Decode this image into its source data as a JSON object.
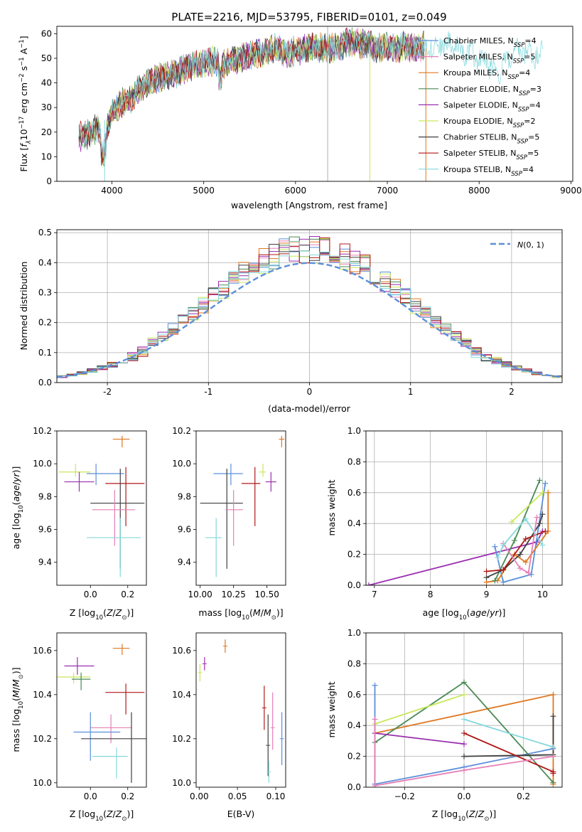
{
  "figure": {
    "title": "PLATE=2216, MJD=53795, FIBERID=0101, z=0.049"
  },
  "chart_data": [
    {
      "id": "spectrum",
      "type": "line",
      "title": "PLATE=2216, MJD=53795, FIBERID=0101, z=0.049",
      "xlabel": "wavelength [Angstrom, rest frame]",
      "ylabel": "Flux [f_λ10^-17 erg cm^-2 s^-1 A^-1]",
      "xlim": [
        3400,
        9020
      ],
      "ylim": [
        0,
        63
      ],
      "xticks": [
        4000,
        5000,
        6000,
        7000,
        8000,
        9000
      ],
      "yticks": [
        0,
        10,
        20,
        30,
        40,
        50,
        60
      ],
      "grid": false,
      "legend_position": "top-right",
      "continuum": {
        "x": [
          3640,
          3750,
          3850,
          3900,
          3950,
          4000,
          4100,
          4200,
          4300,
          4400,
          4500,
          4600,
          4700,
          4800,
          4900,
          5000,
          5100,
          5200,
          5300,
          5400,
          5500,
          5600,
          5700,
          5800,
          5900,
          6000,
          6100,
          6200,
          6300,
          6400,
          6500,
          6600,
          6700,
          6800,
          6900,
          7000,
          7100,
          7200,
          7300,
          7400
        ],
        "y": [
          18,
          19,
          22,
          16,
          22,
          28,
          32,
          33,
          38,
          40,
          42,
          43,
          44,
          46,
          47,
          48,
          49,
          47,
          49,
          50,
          51,
          52,
          53,
          54,
          52,
          53,
          54,
          55,
          54,
          54,
          55,
          57,
          56,
          55,
          54,
          55,
          54,
          55,
          54,
          55
        ]
      },
      "kroupa_stelib_extension": {
        "x": [
          7400,
          7600,
          7800,
          8000,
          8200,
          8400,
          8500,
          8600,
          8700
        ],
        "y": [
          55,
          56,
          54,
          50,
          45,
          52,
          53,
          51,
          52
        ]
      },
      "series": [
        {
          "name": "Chabrier MILES, N_SSP=4",
          "color": "#5b8fd9"
        },
        {
          "name": "Salpeter MILES, N_SSP=5",
          "color": "#e57fb5"
        },
        {
          "name": "Kroupa MILES, N_SSP=4",
          "color": "#e07820"
        },
        {
          "name": "Chabrier ELODIE, N_SSP=3",
          "color": "#4a8a54"
        },
        {
          "name": "Salpeter ELODIE, N_SSP=4",
          "color": "#9a2fb0"
        },
        {
          "name": "Kroupa ELODIE, N_SSP=2",
          "color": "#c8e85a"
        },
        {
          "name": "Chabrier STELIB, N_SSP=5",
          "color": "#404040"
        },
        {
          "name": "Salpeter STELIB, N_SSP=5",
          "color": "#b01818"
        },
        {
          "name": "Kroupa STELIB, N_SSP=4",
          "color": "#84d8dc"
        }
      ]
    },
    {
      "id": "residuals",
      "type": "histogram",
      "xlabel": "(data-model)/error",
      "ylabel": "Normed distribution",
      "xlim": [
        -2.5,
        2.5
      ],
      "ylim": [
        0,
        0.51
      ],
      "xticks": [
        -2,
        -1,
        0,
        1,
        2
      ],
      "yticks": [
        0.0,
        0.1,
        0.2,
        0.3,
        0.4,
        0.5
      ],
      "grid": true,
      "legend_position": "top-right",
      "bin_width": 0.1,
      "reference_curve": {
        "label": "N(0,1)",
        "color": "#5b8fd9"
      }
    },
    {
      "id": "age-vs-Z",
      "type": "scatter",
      "xlabel": "Z [log10(Z/Z⊙)]",
      "ylabel": "age [log10(age/yr)]",
      "xlim": [
        -0.18,
        0.3
      ],
      "ylim": [
        9.26,
        10.2
      ],
      "xticks": [
        0.0,
        0.2
      ],
      "yticks": [
        9.4,
        9.6,
        9.8,
        10.0,
        10.2
      ],
      "grid": false,
      "points": [
        {
          "x": 0.17,
          "y": 10.15,
          "ex": [
            0.05,
            0.04
          ],
          "ey": [
            0.05,
            0.02
          ],
          "color": "#e07820"
        },
        {
          "x": -0.08,
          "y": 9.95,
          "ex": [
            0.09,
            0.08
          ],
          "ey": [
            0.03,
            0.05
          ],
          "color": "#c8e85a"
        },
        {
          "x": 0.03,
          "y": 9.94,
          "ex": [
            0.05,
            0.15
          ],
          "ey": [
            0.07,
            0.06
          ],
          "color": "#5b8fd9"
        },
        {
          "x": -0.06,
          "y": 9.89,
          "ex": [
            0.08,
            0.08
          ],
          "ey": [
            0.06,
            0.06
          ],
          "color": "#9a2fb0"
        },
        {
          "x": 0.19,
          "y": 9.88,
          "ex": [
            0.11,
            0.1
          ],
          "ey": [
            0.26,
            0.1
          ],
          "color": "#b01818"
        },
        {
          "x": 0.16,
          "y": 9.76,
          "ex": [
            0.16,
            0.13
          ],
          "ey": [
            0.4,
            0.21
          ],
          "color": "#404040"
        },
        {
          "x": 0.13,
          "y": 9.72,
          "ex": [
            0.12,
            0.11
          ],
          "ey": [
            0.22,
            0.12
          ],
          "color": "#e57fb5"
        },
        {
          "x": 0.16,
          "y": 9.55,
          "ex": [
            0.18,
            0.11
          ],
          "ey": [
            0.24,
            0.12
          ],
          "color": "#84d8dc"
        }
      ]
    },
    {
      "id": "age-vs-mass",
      "type": "scatter",
      "xlabel": "mass [log10(M/M⊙)]",
      "ylabel": "",
      "xlim": [
        9.97,
        10.64
      ],
      "ylim": [
        9.26,
        10.2
      ],
      "xticks": [
        10.0,
        10.25,
        10.5
      ],
      "yticks": [
        9.4,
        9.6,
        9.8,
        10.0,
        10.2
      ],
      "grid": false,
      "points": [
        {
          "x": 10.61,
          "y": 10.15,
          "ex": [
            0.02,
            0.02
          ],
          "ey": [
            0.05,
            0.02
          ],
          "color": "#e07820"
        },
        {
          "x": 10.47,
          "y": 9.95,
          "ex": [
            0.03,
            0.02
          ],
          "ey": [
            0.03,
            0.05
          ],
          "color": "#c8e85a"
        },
        {
          "x": 10.23,
          "y": 9.94,
          "ex": [
            0.13,
            0.09
          ],
          "ey": [
            0.07,
            0.06
          ],
          "color": "#5b8fd9"
        },
        {
          "x": 10.53,
          "y": 9.89,
          "ex": [
            0.04,
            0.04
          ],
          "ey": [
            0.06,
            0.06
          ],
          "color": "#9a2fb0"
        },
        {
          "x": 10.41,
          "y": 9.88,
          "ex": [
            0.1,
            0.04
          ],
          "ey": [
            0.26,
            0.1
          ],
          "color": "#b01818"
        },
        {
          "x": 10.2,
          "y": 9.76,
          "ex": [
            0.2,
            0.12
          ],
          "ey": [
            0.4,
            0.21
          ],
          "color": "#404040"
        },
        {
          "x": 10.25,
          "y": 9.72,
          "ex": [
            0.06,
            0.07
          ],
          "ey": [
            0.22,
            0.12
          ],
          "color": "#e57fb5"
        },
        {
          "x": 10.12,
          "y": 9.55,
          "ex": [
            0.08,
            0.04
          ],
          "ey": [
            0.24,
            0.12
          ],
          "color": "#84d8dc"
        }
      ]
    },
    {
      "id": "mass-weight-vs-age",
      "type": "line",
      "xlabel": "age [log10(age/yr)]",
      "ylabel": "mass weight",
      "xlim": [
        6.85,
        10.35
      ],
      "ylim": [
        0,
        1
      ],
      "xticks": [
        7,
        8,
        9,
        10
      ],
      "yticks": [
        0.0,
        0.2,
        0.4,
        0.6,
        0.8,
        1.0
      ],
      "grid": true,
      "series": [
        {
          "color": "#9a2fb0",
          "x": [
            6.9,
            9.9,
            10.0
          ],
          "y": [
            0.0,
            0.28,
            0.35
          ]
        },
        {
          "color": "#5b8fd9",
          "x": [
            9.15,
            9.3,
            9.8,
            10.05
          ],
          "y": [
            0.25,
            0.02,
            0.07,
            0.66
          ]
        },
        {
          "color": "#e07820",
          "x": [
            9.0,
            9.2,
            9.5,
            9.7,
            10.1,
            10.1
          ],
          "y": [
            0.02,
            0.03,
            0.2,
            0.15,
            0.35,
            0.6
          ]
        },
        {
          "color": "#4a8a54",
          "x": [
            9.15,
            9.5,
            9.95
          ],
          "y": [
            0.03,
            0.29,
            0.68
          ]
        },
        {
          "color": "#c8e85a",
          "x": [
            9.45,
            10.0
          ],
          "y": [
            0.41,
            0.6
          ]
        },
        {
          "color": "#404040",
          "x": [
            9.0,
            9.3,
            9.6,
            9.95,
            10.0
          ],
          "y": [
            0.05,
            0.1,
            0.2,
            0.4,
            0.46
          ]
        },
        {
          "color": "#b01818",
          "x": [
            9.0,
            9.3,
            9.7,
            10.05
          ],
          "y": [
            0.09,
            0.1,
            0.3,
            0.35
          ]
        },
        {
          "color": "#e57fb5",
          "x": [
            9.3,
            9.6,
            9.75,
            9.9
          ],
          "y": [
            0.27,
            0.11,
            0.08,
            0.44
          ]
        },
        {
          "color": "#84d8dc",
          "x": [
            9.2,
            9.3,
            9.7,
            10.0
          ],
          "y": [
            0.18,
            0.26,
            0.43,
            0.26
          ]
        }
      ]
    },
    {
      "id": "mass-vs-Z",
      "type": "scatter",
      "xlabel": "Z [log10(Z/Z⊙)]",
      "ylabel": "mass [log10(M/M⊙)]",
      "xlim": [
        -0.18,
        0.3
      ],
      "ylim": [
        9.98,
        10.68
      ],
      "xticks": [
        0.0,
        0.2
      ],
      "yticks": [
        10.0,
        10.2,
        10.4,
        10.6
      ],
      "grid": false,
      "points": [
        {
          "x": 0.17,
          "y": 10.61,
          "ex": [
            0.05,
            0.04
          ],
          "ey": [
            0.03,
            0.02
          ],
          "color": "#e07820"
        },
        {
          "x": -0.07,
          "y": 10.53,
          "ex": [
            0.07,
            0.09
          ],
          "ey": [
            0.04,
            0.04
          ],
          "color": "#9a2fb0"
        },
        {
          "x": -0.09,
          "y": 10.48,
          "ex": [
            0.09,
            0.09
          ],
          "ey": [
            0.03,
            0.02
          ],
          "color": "#c8e85a"
        },
        {
          "x": -0.05,
          "y": 10.47,
          "ex": [
            0.05,
            0.05
          ],
          "ey": [
            0.05,
            0.03
          ],
          "color": "#4a8a54"
        },
        {
          "x": 0.19,
          "y": 10.41,
          "ex": [
            0.11,
            0.1
          ],
          "ey": [
            0.1,
            0.04
          ],
          "color": "#b01818"
        },
        {
          "x": 0.11,
          "y": 10.25,
          "ex": [
            0.11,
            0.11
          ],
          "ey": [
            0.07,
            0.06
          ],
          "color": "#e57fb5"
        },
        {
          "x": 0.0,
          "y": 10.23,
          "ex": [
            0.09,
            0.16
          ],
          "ey": [
            0.13,
            0.09
          ],
          "color": "#5b8fd9"
        },
        {
          "x": 0.22,
          "y": 10.2,
          "ex": [
            0.27,
            0.08
          ],
          "ey": [
            0.2,
            0.12
          ],
          "color": "#404040"
        },
        {
          "x": 0.14,
          "y": 10.12,
          "ex": [
            0.13,
            0.06
          ],
          "ey": [
            0.1,
            0.04
          ],
          "color": "#84d8dc"
        }
      ]
    },
    {
      "id": "mass-vs-EBV",
      "type": "scatter",
      "xlabel": "E(B-V)",
      "ylabel": "",
      "xlim": [
        -0.004,
        0.113
      ],
      "ylim": [
        9.98,
        10.68
      ],
      "xticks": [
        0.0,
        0.05,
        0.1
      ],
      "yticks": [
        10.0,
        10.2,
        10.4,
        10.6
      ],
      "grid": false,
      "points": [
        {
          "x": 0.034,
          "y": 10.62,
          "ey": [
            0.03,
            0.03
          ],
          "color": "#e07820"
        },
        {
          "x": 0.007,
          "y": 10.54,
          "ey": [
            0.03,
            0.03
          ],
          "color": "#9a2fb0"
        },
        {
          "x": 0.001,
          "y": 10.5,
          "ey": [
            0.04,
            0.04
          ],
          "color": "#c8e85a"
        },
        {
          "x": 0.085,
          "y": 10.34,
          "ey": [
            0.1,
            0.1
          ],
          "color": "#b01818"
        },
        {
          "x": 0.096,
          "y": 10.25,
          "ey": [
            0.1,
            0.16
          ],
          "color": "#e57fb5"
        },
        {
          "x": 0.09,
          "y": 10.17,
          "ey": [
            0.14,
            0.14
          ],
          "color": "#404040"
        },
        {
          "x": 0.108,
          "y": 10.2,
          "ey": [
            0.12,
            0.12
          ],
          "color": "#5b8fd9"
        },
        {
          "x": 0.091,
          "y": 10.05,
          "ey": [
            0.05,
            0.05
          ],
          "color": "#84d8dc"
        }
      ]
    },
    {
      "id": "mass-weight-vs-Z",
      "type": "line",
      "xlabel": "Z [log10(Z/Z⊙)]",
      "ylabel": "mass weight",
      "xlim": [
        -0.33,
        0.33
      ],
      "ylim": [
        0,
        1
      ],
      "xticks": [
        -0.2,
        0.0,
        0.2
      ],
      "yticks": [
        0.0,
        0.2,
        0.4,
        0.6,
        0.8,
        1.0
      ],
      "grid": true,
      "series": [
        {
          "color": "#5b8fd9",
          "x": [
            -0.3,
            -0.3,
            0.0,
            0.3
          ],
          "y": [
            0.66,
            0.02,
            0.13,
            0.25
          ]
        },
        {
          "color": "#e07820",
          "x": [
            -0.3,
            0.3,
            0.3
          ],
          "y": [
            0.35,
            0.6,
            0.02
          ]
        },
        {
          "color": "#4a8a54",
          "x": [
            -0.3,
            0.0,
            0.3
          ],
          "y": [
            0.29,
            0.68,
            0.03
          ]
        },
        {
          "color": "#9a2fb0",
          "x": [
            -0.3,
            0.0
          ],
          "y": [
            0.35,
            0.28
          ]
        },
        {
          "color": "#c8e85a",
          "x": [
            -0.3,
            0.0
          ],
          "y": [
            0.41,
            0.6
          ]
        },
        {
          "color": "#404040",
          "x": [
            0.0,
            0.3,
            0.3
          ],
          "y": [
            0.2,
            0.21,
            0.46
          ]
        },
        {
          "color": "#b01818",
          "x": [
            0.0,
            0.3,
            0.3
          ],
          "y": [
            0.35,
            0.1,
            0.09
          ]
        },
        {
          "color": "#e57fb5",
          "x": [
            -0.3,
            -0.3,
            0.0,
            0.3
          ],
          "y": [
            0.44,
            0.01,
            0.11,
            0.2
          ]
        },
        {
          "color": "#84d8dc",
          "x": [
            0.0,
            0.3
          ],
          "y": [
            0.44,
            0.26
          ]
        }
      ]
    }
  ]
}
